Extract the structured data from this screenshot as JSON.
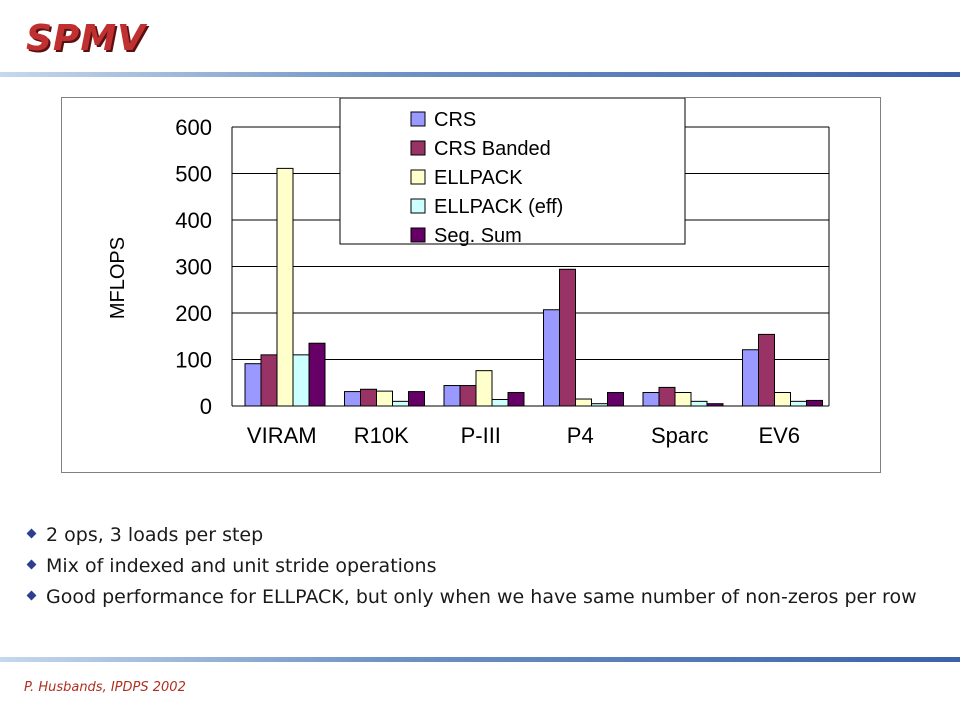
{
  "slide": {
    "title": "SPMV",
    "footer": "P. Husbands, IPDPS 2002",
    "bullets": [
      "2 ops, 3 loads per step",
      "Mix of indexed and unit stride operations",
      "Good performance for ELLPACK, but only when we have same number of non-zeros per row"
    ]
  },
  "chart_data": {
    "type": "bar",
    "title": "",
    "xlabel": "",
    "ylabel": "MFLOPS",
    "ylim": [
      0,
      600
    ],
    "yticks": [
      0,
      100,
      200,
      300,
      400,
      500,
      600
    ],
    "grid": true,
    "legend_position": "top-center",
    "categories": [
      "VIRAM",
      "R10K",
      "P-III",
      "P4",
      "Sparc",
      "EV6"
    ],
    "series": [
      {
        "name": "CRS",
        "color": "#9999ff",
        "values": [
          91,
          31,
          44,
          207,
          29,
          121
        ]
      },
      {
        "name": "CRS Banded",
        "color": "#993366",
        "values": [
          110,
          36,
          44,
          294,
          40,
          154
        ]
      },
      {
        "name": "ELLPACK",
        "color": "#ffffcc",
        "values": [
          511,
          32,
          76,
          15,
          29,
          29
        ]
      },
      {
        "name": "ELLPACK (eff)",
        "color": "#ccffff",
        "values": [
          110,
          10,
          14,
          5,
          10,
          10
        ]
      },
      {
        "name": "Seg. Sum",
        "color": "#660066",
        "values": [
          135,
          31,
          29,
          29,
          5,
          12
        ]
      }
    ]
  }
}
